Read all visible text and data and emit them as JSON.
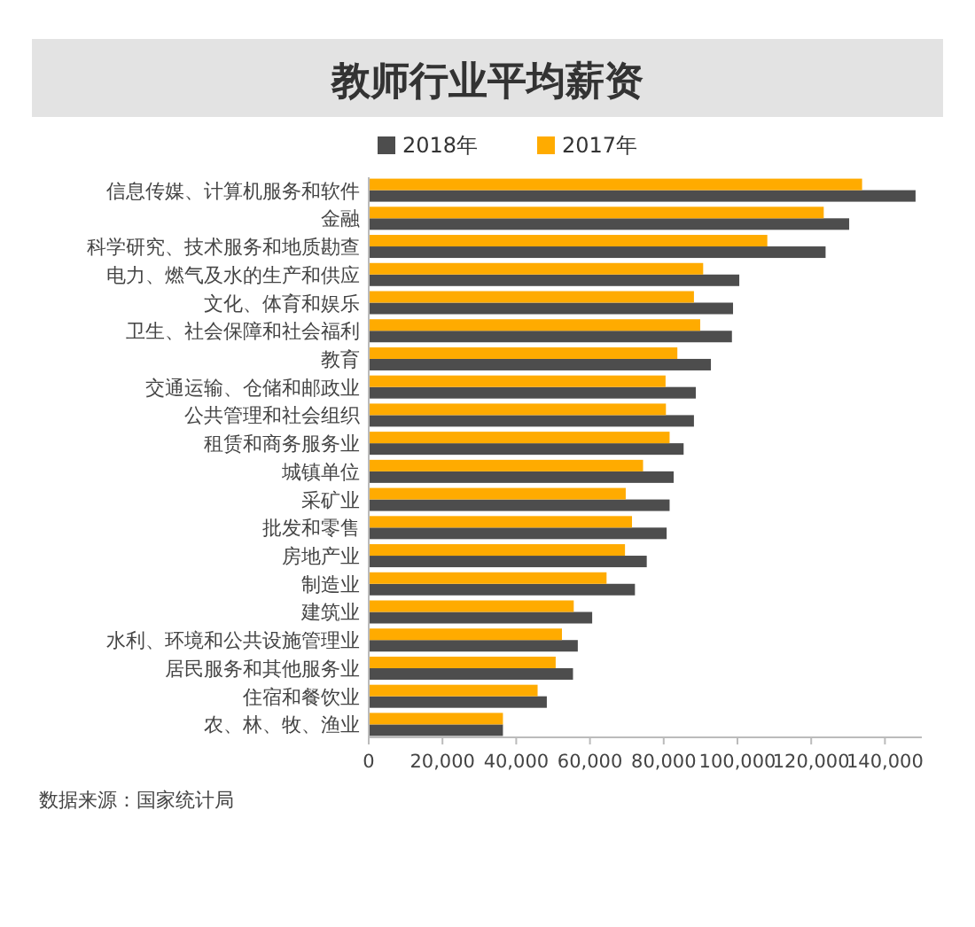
{
  "chart_data": {
    "type": "bar",
    "orientation": "horizontal",
    "title": "教师行业平均薪资",
    "categories": [
      "信息传媒、计算机服务和软件",
      "金融",
      "科学研究、技术服务和地质勘查",
      "电力、燃气及水的生产和供应",
      "文化、体育和娱乐",
      "卫生、社会保障和社会福利",
      "教育",
      "交通运输、仓储和邮政业",
      "公共管理和社会组织",
      "租赁和商务服务业",
      "城镇单位",
      "采矿业",
      "批发和零售",
      "房地产业",
      "制造业",
      "建筑业",
      "水利、环境和公共设施管理业",
      "居民服务和其他服务业",
      "住宿和餐饮业",
      "农、林、牧、渔业"
    ],
    "series": [
      {
        "name": "2018年",
        "color": "#4d4d4d",
        "values": [
          148300,
          130300,
          123900,
          100500,
          98800,
          98500,
          92800,
          88700,
          88200,
          85400,
          82700,
          81600,
          80800,
          75400,
          72200,
          60600,
          56700,
          55400,
          48300,
          36400
        ]
      },
      {
        "name": "2017年",
        "color": "#ffab00",
        "values": [
          133800,
          123400,
          108100,
          90700,
          88200,
          89900,
          83700,
          80500,
          80600,
          81600,
          74400,
          69700,
          71400,
          69500,
          64500,
          55600,
          52400,
          50700,
          45800,
          36400
        ]
      }
    ],
    "xlim": [
      0,
      150000
    ],
    "xticks": [
      0,
      {
        "value": 20000,
        "label": "20,000"
      },
      {
        "value": 40000,
        "label": "40,000"
      },
      {
        "value": 60000,
        "label": "60,000"
      },
      {
        "value": 80000,
        "label": "80,000"
      },
      {
        "value": 100000,
        "label": "100,000"
      },
      {
        "value": 120000,
        "label": "120,000"
      },
      {
        "value": 140000,
        "label": "140,000"
      }
    ],
    "legend": "top",
    "annotations": [
      "数据来源：国家统计局"
    ]
  }
}
